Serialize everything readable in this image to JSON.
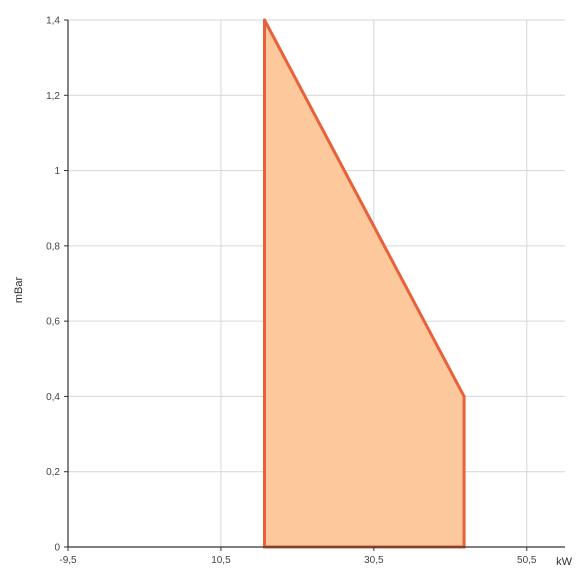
{
  "chart_data": {
    "type": "area",
    "xlabel": "kW",
    "ylabel": "mBar",
    "xlim": [
      -9.5,
      55.5
    ],
    "ylim": [
      0,
      1.4
    ],
    "x_ticks": [
      -9.5,
      10.5,
      30.5,
      50.5
    ],
    "x_tick_labels": [
      "-9,5",
      "10,5",
      "30,5",
      "50,5"
    ],
    "y_ticks": [
      0,
      0.2,
      0.4,
      0.6,
      0.8,
      1,
      1.2,
      1.4
    ],
    "y_tick_labels": [
      "0",
      "0,2",
      "0,4",
      "0,6",
      "0,8",
      "1",
      "1,2",
      "1,4"
    ],
    "grid": true,
    "series": [
      {
        "points": [
          {
            "x": 16.2,
            "y": 0
          },
          {
            "x": 16.2,
            "y": 1.4
          },
          {
            "x": 42.3,
            "y": 0.4
          },
          {
            "x": 42.3,
            "y": 0
          }
        ]
      }
    ],
    "colors": {
      "fill": "#fdc89b",
      "stroke": "#e8613b",
      "grid": "#d6d6d6",
      "axis": "#333333"
    }
  }
}
